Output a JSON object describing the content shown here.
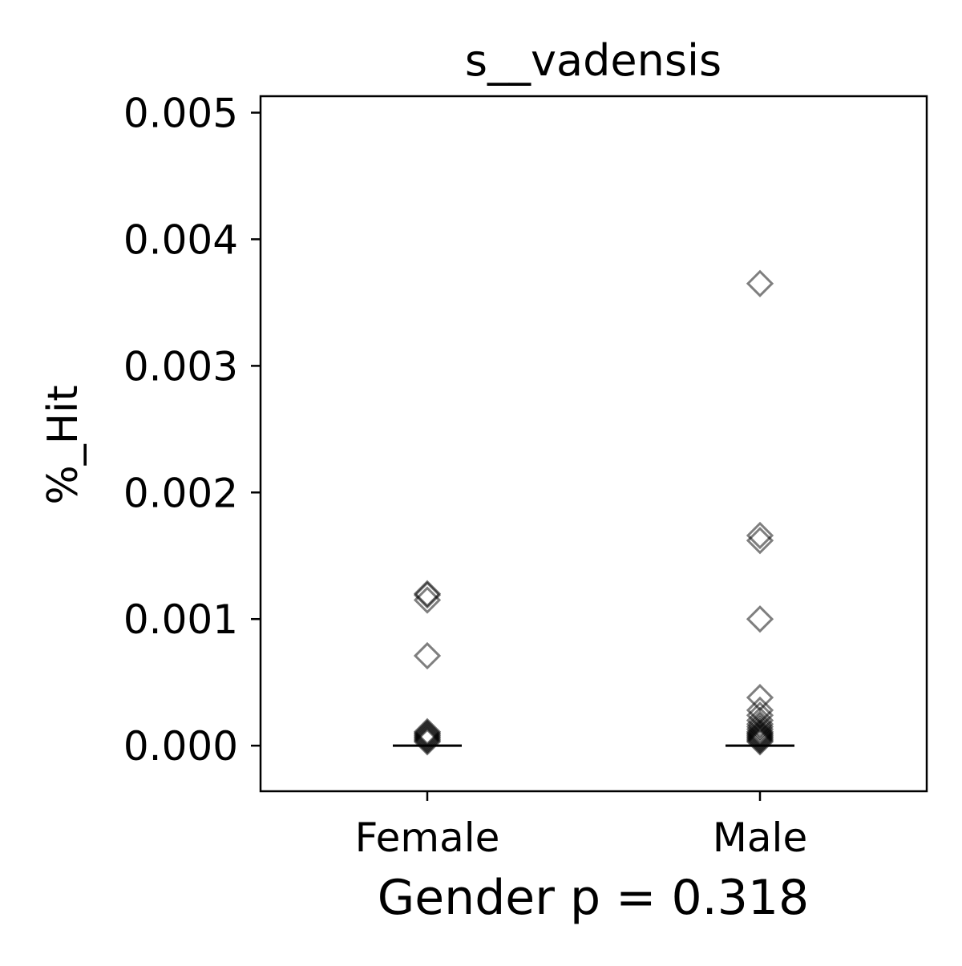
{
  "chart_data": {
    "type": "scatter",
    "title": "s__vadensis",
    "xlabel": "Gender p = 0.318",
    "ylabel": "%_Hit",
    "categories": [
      "Female",
      "Male"
    ],
    "ylim": [
      -0.00036,
      0.00513
    ],
    "yticks": [
      0.0,
      0.001,
      0.002,
      0.003,
      0.004,
      0.005
    ],
    "ytick_labels": [
      "0.000",
      "0.001",
      "0.002",
      "0.003",
      "0.004",
      "0.005"
    ],
    "grid": false,
    "legend": "none",
    "marker": "diamond-open",
    "marker_color": "#000000",
    "marker_alpha": 0.5,
    "median_line_color": "#000000",
    "series": [
      {
        "category": "Female",
        "median": 0.0,
        "values": [
          0.0012,
          0.00119,
          0.00115,
          0.00071,
          0.00011,
          0.0001,
          9e-05,
          8e-05,
          7e-05,
          6e-05,
          5e-05,
          4e-05,
          3e-05
        ]
      },
      {
        "category": "Male",
        "median": 0.0,
        "values": [
          0.00365,
          0.00166,
          0.00162,
          0.001,
          0.00038,
          0.00028,
          0.00024,
          0.0002,
          0.00017,
          0.00015,
          0.00013,
          0.00011,
          0.0001,
          9e-05,
          8e-05,
          7e-05,
          6e-05,
          5e-05,
          4e-05,
          3e-05
        ]
      }
    ]
  }
}
